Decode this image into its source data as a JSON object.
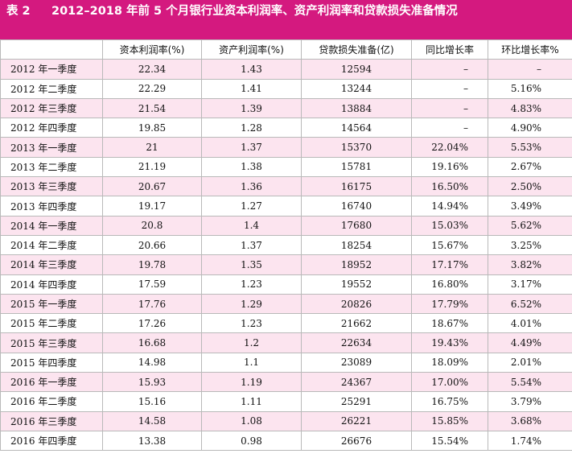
{
  "title": {
    "number": "表 2",
    "text": "2012–2018 年前 5 个月银行业资本利润率、资产利润率和贷款损失准备情况"
  },
  "table": {
    "headers": [
      "",
      "资本利润率(%)",
      "资产利润率(%)",
      "贷款损失准备(亿)",
      "同比增长率",
      "环比增长率%"
    ],
    "rows": [
      [
        "2012 年一季度",
        "22.34",
        "1.43",
        "12594",
        "–",
        "–"
      ],
      [
        "2012 年二季度",
        "22.29",
        "1.41",
        "13244",
        "–",
        "5.16%"
      ],
      [
        "2012 年三季度",
        "21.54",
        "1.39",
        "13884",
        "–",
        "4.83%"
      ],
      [
        "2012 年四季度",
        "19.85",
        "1.28",
        "14564",
        "–",
        "4.90%"
      ],
      [
        "2013 年一季度",
        "21",
        "1.37",
        "15370",
        "22.04%",
        "5.53%"
      ],
      [
        "2013 年二季度",
        "21.19",
        "1.38",
        "15781",
        "19.16%",
        "2.67%"
      ],
      [
        "2013 年三季度",
        "20.67",
        "1.36",
        "16175",
        "16.50%",
        "2.50%"
      ],
      [
        "2013 年四季度",
        "19.17",
        "1.27",
        "16740",
        "14.94%",
        "3.49%"
      ],
      [
        "2014 年一季度",
        "20.8",
        "1.4",
        "17680",
        "15.03%",
        "5.62%"
      ],
      [
        "2014 年二季度",
        "20.66",
        "1.37",
        "18254",
        "15.67%",
        "3.25%"
      ],
      [
        "2014 年三季度",
        "19.78",
        "1.35",
        "18952",
        "17.17%",
        "3.82%"
      ],
      [
        "2014 年四季度",
        "17.59",
        "1.23",
        "19552",
        "16.80%",
        "3.17%"
      ],
      [
        "2015 年一季度",
        "17.76",
        "1.29",
        "20826",
        "17.79%",
        "6.52%"
      ],
      [
        "2015 年二季度",
        "17.26",
        "1.23",
        "21662",
        "18.67%",
        "4.01%"
      ],
      [
        "2015 年三季度",
        "16.68",
        "1.2",
        "22634",
        "19.43%",
        "4.49%"
      ],
      [
        "2015 年四季度",
        "14.98",
        "1.1",
        "23089",
        "18.09%",
        "2.01%"
      ],
      [
        "2016 年一季度",
        "15.93",
        "1.19",
        "24367",
        "17.00%",
        "5.54%"
      ],
      [
        "2016 年二季度",
        "15.16",
        "1.11",
        "25291",
        "16.75%",
        "3.79%"
      ],
      [
        "2016 年三季度",
        "14.58",
        "1.08",
        "26221",
        "15.85%",
        "3.68%"
      ],
      [
        "2016 年四季度",
        "13.38",
        "0.98",
        "26676",
        "15.54%",
        "1.74%"
      ]
    ]
  },
  "colors": {
    "title_bg": "#d4197f",
    "alt_row_bg": "#fce4ef",
    "grid": "#b9b9b9"
  }
}
